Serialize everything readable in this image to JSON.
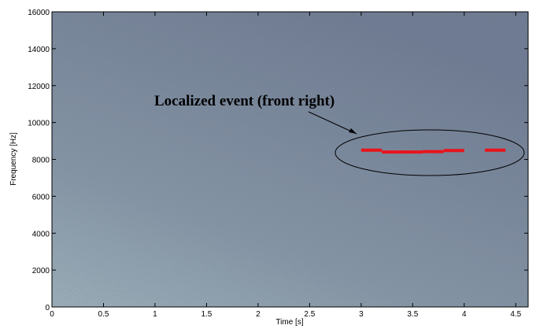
{
  "chart_data": {
    "type": "spectrogram",
    "x_label": "Time [s]",
    "y_label": "Frequency [Hz]",
    "annotation": "Localized event (front right)",
    "xlim": [
      0,
      4.62
    ],
    "ylim": [
      0,
      16000
    ],
    "xticks": [
      0,
      0.5,
      1,
      1.5,
      2,
      2.5,
      3,
      3.5,
      4,
      4.5
    ],
    "yticks": [
      0,
      2000,
      4000,
      6000,
      8000,
      10000,
      12000,
      14000,
      16000
    ],
    "event_color": "#e8141b",
    "events": [
      {
        "start": 3.0,
        "end": 3.2,
        "frequency": 8500
      },
      {
        "start": 3.2,
        "end": 3.6,
        "frequency": 8400
      },
      {
        "start": 3.6,
        "end": 3.8,
        "frequency": 8420
      },
      {
        "start": 3.8,
        "end": 4.0,
        "frequency": 8480
      },
      {
        "start": 4.2,
        "end": 4.4,
        "frequency": 8500
      }
    ]
  }
}
